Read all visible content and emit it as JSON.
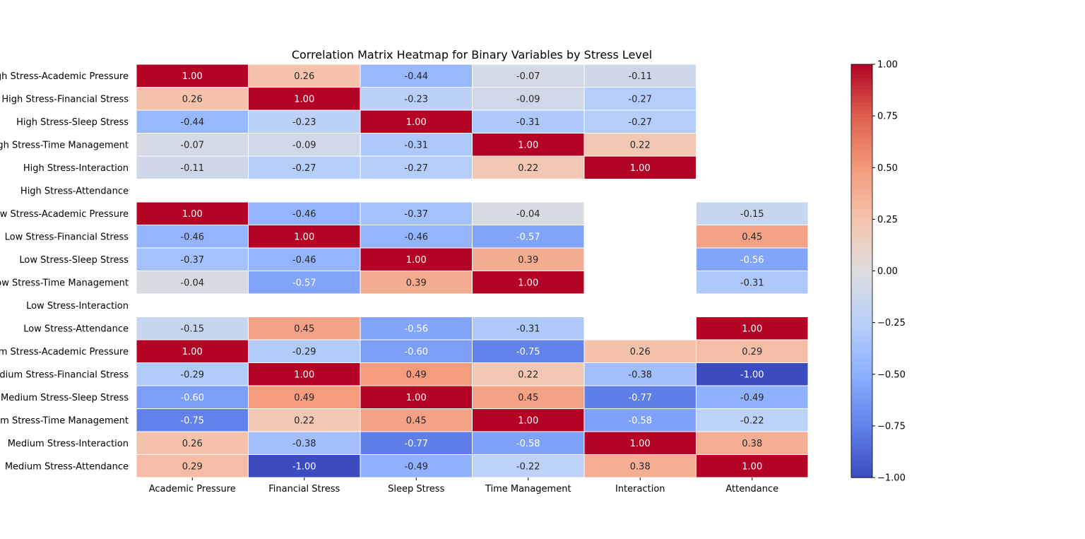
{
  "chart_data": {
    "type": "heatmap",
    "title": "Correlation Matrix Heatmap for Binary Variables by Stress Level",
    "xlabel": "",
    "ylabel": "",
    "colormap": "coolwarm",
    "color_range": [
      -1,
      1
    ],
    "cell_border_color": "#ffffff",
    "columns": [
      "Academic Pressure",
      "Financial Stress",
      "Sleep Stress",
      "Time Management",
      "Interaction",
      "Attendance"
    ],
    "rows": [
      "High Stress-Academic Pressure",
      "High Stress-Financial Stress",
      "High Stress-Sleep Stress",
      "High Stress-Time Management",
      "High Stress-Interaction",
      "High Stress-Attendance",
      "Low Stress-Academic Pressure",
      "Low Stress-Financial Stress",
      "Low Stress-Sleep Stress",
      "Low Stress-Time Management",
      "Low Stress-Interaction",
      "Low Stress-Attendance",
      "Medium Stress-Academic Pressure",
      "Medium Stress-Financial Stress",
      "Medium Stress-Sleep Stress",
      "Medium Stress-Time Management",
      "Medium Stress-Interaction",
      "Medium Stress-Attendance"
    ],
    "values": [
      [
        1.0,
        0.26,
        -0.44,
        -0.07,
        -0.11,
        null
      ],
      [
        0.26,
        1.0,
        -0.23,
        -0.09,
        -0.27,
        null
      ],
      [
        -0.44,
        -0.23,
        1.0,
        -0.31,
        -0.27,
        null
      ],
      [
        -0.07,
        -0.09,
        -0.31,
        1.0,
        0.22,
        null
      ],
      [
        -0.11,
        -0.27,
        -0.27,
        0.22,
        1.0,
        null
      ],
      [
        null,
        null,
        null,
        null,
        null,
        null
      ],
      [
        1.0,
        -0.46,
        -0.37,
        -0.04,
        null,
        -0.15
      ],
      [
        -0.46,
        1.0,
        -0.46,
        -0.57,
        null,
        0.45
      ],
      [
        -0.37,
        -0.46,
        1.0,
        0.39,
        null,
        -0.56
      ],
      [
        -0.04,
        -0.57,
        0.39,
        1.0,
        null,
        -0.31
      ],
      [
        null,
        null,
        null,
        null,
        null,
        null
      ],
      [
        -0.15,
        0.45,
        -0.56,
        -0.31,
        null,
        1.0
      ],
      [
        1.0,
        -0.29,
        -0.6,
        -0.75,
        0.26,
        0.29
      ],
      [
        -0.29,
        1.0,
        0.49,
        0.22,
        -0.38,
        -1.0
      ],
      [
        -0.6,
        0.49,
        1.0,
        0.45,
        -0.77,
        -0.49
      ],
      [
        -0.75,
        0.22,
        0.45,
        1.0,
        -0.58,
        -0.22
      ],
      [
        0.26,
        -0.38,
        -0.77,
        -0.58,
        1.0,
        0.38
      ],
      [
        0.29,
        -1.0,
        -0.49,
        -0.22,
        0.38,
        1.0
      ]
    ],
    "value_format": "2 decimals",
    "colorbar": {
      "ticks": [
        1.0,
        0.75,
        0.5,
        0.25,
        0.0,
        -0.25,
        -0.5,
        -0.75,
        -1.0
      ],
      "tick_labels": [
        "1.00",
        "0.75",
        "0.50",
        "0.25",
        "0.00",
        "−0.25",
        "−0.50",
        "−0.75",
        "−1.00"
      ]
    }
  }
}
